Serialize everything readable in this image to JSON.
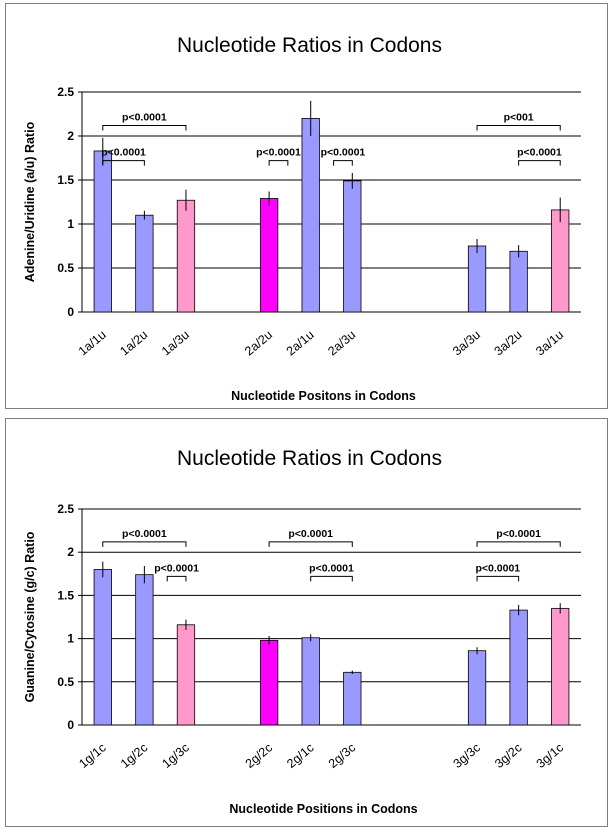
{
  "chart_data": [
    {
      "type": "bar",
      "title": "Nucleotide Ratios in Codons",
      "xlabel": "Nucleotide Positons in Codons",
      "ylabel": "Adenine/Uridine (a/u) Ratio",
      "ylim": [
        0,
        2.5
      ],
      "yticks": [
        "0",
        "0.5",
        "1",
        "1.5",
        "2",
        "2.5"
      ],
      "grid": true,
      "slots": 12,
      "colors": {
        "standard": "#9999ff",
        "ratio3": "#ff99cc",
        "highlight": "#ff00ff"
      },
      "bars": [
        {
          "slot": 0,
          "category": "1a/1u",
          "value": 1.83,
          "error": 0.15,
          "color_role": "standard"
        },
        {
          "slot": 1,
          "category": "1a/2u",
          "value": 1.1,
          "error": 0.05,
          "color_role": "standard"
        },
        {
          "slot": 2,
          "category": "1a/3u",
          "value": 1.27,
          "error": 0.12,
          "color_role": "ratio3"
        },
        {
          "slot": 4,
          "category": "2a/2u",
          "value": 1.29,
          "error": 0.08,
          "color_role": "highlight"
        },
        {
          "slot": 5,
          "category": "2a/1u",
          "value": 2.2,
          "error": 0.2,
          "color_role": "standard"
        },
        {
          "slot": 6,
          "category": "2a/3u",
          "value": 1.49,
          "error": 0.09,
          "color_role": "standard"
        },
        {
          "slot": 9,
          "category": "3a/3u",
          "value": 0.75,
          "error": 0.08,
          "color_role": "standard"
        },
        {
          "slot": 10,
          "category": "3a/2u",
          "value": 0.69,
          "error": 0.07,
          "color_role": "standard"
        },
        {
          "slot": 11,
          "category": "3a/1u",
          "value": 1.16,
          "error": 0.14,
          "color_role": "ratio3"
        }
      ],
      "annotations": [
        {
          "text": "p<0.0001",
          "from": 0,
          "to": 2,
          "level": 2.12
        },
        {
          "text": "p<0.0001",
          "from": 0,
          "to": 1,
          "level": 1.72
        },
        {
          "text": "p<0.0001",
          "from": 4,
          "to": 4.45,
          "level": 1.72
        },
        {
          "text": "p<0.0001",
          "from": 5.55,
          "to": 6,
          "level": 1.72
        },
        {
          "text": "p<001",
          "from": 9,
          "to": 11,
          "level": 2.12
        },
        {
          "text": "p<0.0001",
          "from": 10,
          "to": 11,
          "level": 1.72
        }
      ]
    },
    {
      "type": "bar",
      "title": "Nucleotide Ratios in Codons",
      "xlabel": "Nucleotide Positions in Codons",
      "ylabel": "Guanine/Cytosine (g/c) Ratio",
      "ylim": [
        0,
        2.5
      ],
      "yticks": [
        "0",
        "0.5",
        "1",
        "1.5",
        "2",
        "2.5"
      ],
      "grid": true,
      "slots": 12,
      "colors": {
        "standard": "#9999ff",
        "ratio3": "#ff99cc",
        "highlight": "#ff00ff"
      },
      "bars": [
        {
          "slot": 0,
          "category": "1g/1c",
          "value": 1.8,
          "error": 0.09,
          "color_role": "standard"
        },
        {
          "slot": 1,
          "category": "1g/2c",
          "value": 1.74,
          "error": 0.1,
          "color_role": "standard"
        },
        {
          "slot": 2,
          "category": "1g/3c",
          "value": 1.16,
          "error": 0.06,
          "color_role": "ratio3"
        },
        {
          "slot": 4,
          "category": "2g/2c",
          "value": 0.98,
          "error": 0.05,
          "color_role": "highlight"
        },
        {
          "slot": 5,
          "category": "2g/1c",
          "value": 1.01,
          "error": 0.04,
          "color_role": "standard"
        },
        {
          "slot": 6,
          "category": "2g/3c",
          "value": 0.61,
          "error": 0.02,
          "color_role": "standard"
        },
        {
          "slot": 9,
          "category": "3g/3c",
          "value": 0.86,
          "error": 0.04,
          "color_role": "standard"
        },
        {
          "slot": 10,
          "category": "3g/2c",
          "value": 1.33,
          "error": 0.06,
          "color_role": "standard"
        },
        {
          "slot": 11,
          "category": "3g/1c",
          "value": 1.35,
          "error": 0.06,
          "color_role": "ratio3"
        }
      ],
      "annotations": [
        {
          "text": "p<0.0001",
          "from": 0,
          "to": 2,
          "level": 2.12
        },
        {
          "text": "p<0.0001",
          "from": 1.55,
          "to": 2,
          "level": 1.72
        },
        {
          "text": "p<0.0001",
          "from": 4,
          "to": 6,
          "level": 2.12
        },
        {
          "text": "p<0.0001",
          "from": 5,
          "to": 6,
          "level": 1.72
        },
        {
          "text": "p<0.0001",
          "from": 9,
          "to": 11,
          "level": 2.12
        },
        {
          "text": "p<0.0001",
          "from": 9,
          "to": 10,
          "level": 1.72
        }
      ]
    }
  ]
}
